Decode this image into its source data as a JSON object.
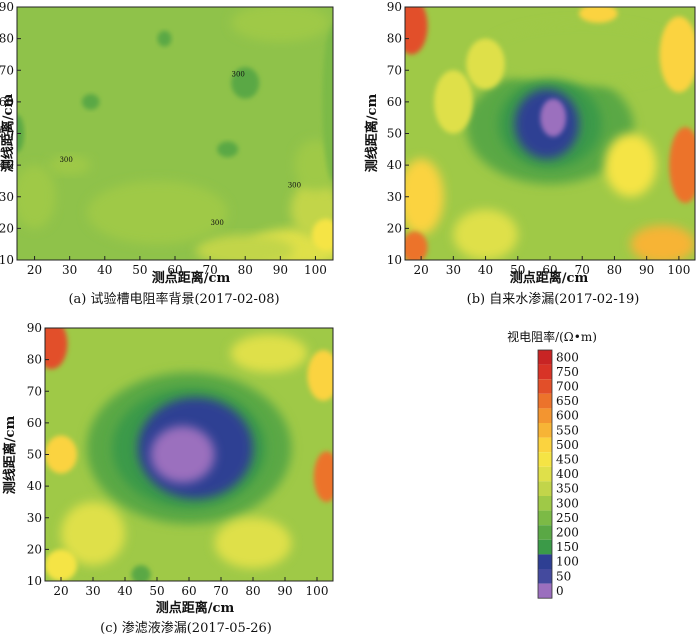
{
  "figure": {
    "colorbar": {
      "title": "视电阻率/(Ω•m)",
      "levels": [
        0,
        50,
        100,
        150,
        200,
        250,
        300,
        350,
        400,
        450,
        500,
        550,
        600,
        650,
        700,
        750,
        800
      ],
      "colors": [
        "#9b6fbe",
        "#444a9e",
        "#2e3f93",
        "#3b9a48",
        "#5aa845",
        "#7cba46",
        "#9fc947",
        "#c2d54a",
        "#dfe04a",
        "#f5e445",
        "#fbd33f",
        "#f7b436",
        "#f39530",
        "#ec732b",
        "#e24f29",
        "#d83326",
        "#c82424"
      ]
    }
  },
  "chart_data": [
    {
      "type": "heatmap",
      "caption": "(a)  试验槽电阻率背景(2017-02-08)",
      "xlabel": "测点距离/cm",
      "ylabel": "测线距离/cm",
      "xlim": [
        15,
        105
      ],
      "ylim": [
        10,
        90
      ],
      "xticks": [
        20,
        30,
        40,
        50,
        60,
        70,
        80,
        90,
        100
      ],
      "yticks": [
        10,
        20,
        30,
        40,
        50,
        60,
        70,
        80,
        90
      ],
      "contour_labels": [
        "300",
        "300",
        "300",
        "300"
      ],
      "background": "#8fc24a",
      "blobs": [
        {
          "cx": 95,
          "cy": 14,
          "rx": 14,
          "ry": 6,
          "v": 420
        },
        {
          "cx": 80,
          "cy": 13,
          "rx": 14,
          "ry": 5,
          "v": 360
        },
        {
          "cx": 100,
          "cy": 26,
          "rx": 7,
          "ry": 9,
          "v": 380
        },
        {
          "cx": 103,
          "cy": 18,
          "rx": 4,
          "ry": 5,
          "v": 480
        },
        {
          "cx": 100,
          "cy": 40,
          "rx": 6,
          "ry": 8,
          "v": 340
        },
        {
          "cx": 30,
          "cy": 40,
          "rx": 6,
          "ry": 3,
          "v": 320
        },
        {
          "cx": 55,
          "cy": 25,
          "rx": 20,
          "ry": 10,
          "v": 320
        },
        {
          "cx": 20,
          "cy": 30,
          "rx": 6,
          "ry": 10,
          "v": 320
        },
        {
          "cx": 80,
          "cy": 66,
          "rx": 4,
          "ry": 5,
          "v": 220
        },
        {
          "cx": 75,
          "cy": 45,
          "rx": 3,
          "ry": 2.5,
          "v": 230
        },
        {
          "cx": 36,
          "cy": 60,
          "rx": 2.5,
          "ry": 2.5,
          "v": 230
        },
        {
          "cx": 57,
          "cy": 80,
          "rx": 2,
          "ry": 2.5,
          "v": 230
        },
        {
          "cx": 15,
          "cy": 50,
          "rx": 2,
          "ry": 6,
          "v": 240
        },
        {
          "cx": 105,
          "cy": 60,
          "rx": 3,
          "ry": 25,
          "v": 250
        },
        {
          "cx": 90,
          "cy": 85,
          "rx": 14,
          "ry": 6,
          "v": 320
        }
      ]
    },
    {
      "type": "heatmap",
      "caption": "(b)  自来水渗漏(2017-02-19)",
      "xlabel": "测点距离/cm",
      "ylabel": "测线距离/cm",
      "xlim": [
        15,
        105
      ],
      "ylim": [
        10,
        90
      ],
      "xticks": [
        20,
        30,
        40,
        50,
        60,
        70,
        80,
        90,
        100
      ],
      "yticks": [
        10,
        20,
        30,
        40,
        50,
        60,
        70,
        80,
        90
      ],
      "background": "#9fc947",
      "blobs": [
        {
          "cx": 60,
          "cy": 52,
          "rx": 26,
          "ry": 18,
          "v": 240
        },
        {
          "cx": 70,
          "cy": 75,
          "rx": 30,
          "ry": 10,
          "v": 340
        },
        {
          "cx": 60,
          "cy": 53,
          "rx": 16,
          "ry": 14,
          "v": 175
        },
        {
          "cx": 59,
          "cy": 53,
          "rx": 10,
          "ry": 11,
          "v": 120
        },
        {
          "cx": 61,
          "cy": 55,
          "rx": 4,
          "ry": 6,
          "v": 30
        },
        {
          "cx": 17,
          "cy": 84,
          "rx": 5,
          "ry": 9,
          "v": 700
        },
        {
          "cx": 20,
          "cy": 30,
          "rx": 7,
          "ry": 12,
          "v": 500
        },
        {
          "cx": 18,
          "cy": 14,
          "rx": 4,
          "ry": 5,
          "v": 650
        },
        {
          "cx": 102,
          "cy": 40,
          "rx": 5,
          "ry": 12,
          "v": 650
        },
        {
          "cx": 100,
          "cy": 75,
          "rx": 6,
          "ry": 12,
          "v": 500
        },
        {
          "cx": 95,
          "cy": 15,
          "rx": 10,
          "ry": 6,
          "v": 550
        },
        {
          "cx": 75,
          "cy": 88,
          "rx": 6,
          "ry": 3,
          "v": 500
        },
        {
          "cx": 40,
          "cy": 72,
          "rx": 6,
          "ry": 8,
          "v": 440
        },
        {
          "cx": 40,
          "cy": 18,
          "rx": 10,
          "ry": 8,
          "v": 440
        },
        {
          "cx": 85,
          "cy": 40,
          "rx": 8,
          "ry": 10,
          "v": 450
        },
        {
          "cx": 30,
          "cy": 60,
          "rx": 6,
          "ry": 10,
          "v": 420
        }
      ]
    },
    {
      "type": "heatmap",
      "caption": "(c)  渗滤液渗漏(2017-05-26)",
      "xlabel": "测点距离/cm",
      "ylabel": "测线距离/cm",
      "xlim": [
        15,
        105
      ],
      "ylim": [
        10,
        90
      ],
      "xticks": [
        20,
        30,
        40,
        50,
        60,
        70,
        80,
        90,
        100
      ],
      "yticks": [
        10,
        20,
        30,
        40,
        50,
        60,
        70,
        80,
        90
      ],
      "background": "#9fc947",
      "blobs": [
        {
          "cx": 60,
          "cy": 52,
          "rx": 32,
          "ry": 24,
          "v": 240
        },
        {
          "cx": 60,
          "cy": 52,
          "rx": 24,
          "ry": 19,
          "v": 175
        },
        {
          "cx": 62,
          "cy": 52,
          "rx": 18,
          "ry": 16,
          "v": 110
        },
        {
          "cx": 58,
          "cy": 50,
          "rx": 10,
          "ry": 9,
          "v": 30
        },
        {
          "cx": 17,
          "cy": 85,
          "rx": 5,
          "ry": 8,
          "v": 700
        },
        {
          "cx": 103,
          "cy": 43,
          "rx": 4,
          "ry": 8,
          "v": 650
        },
        {
          "cx": 102,
          "cy": 75,
          "rx": 5,
          "ry": 8,
          "v": 500
        },
        {
          "cx": 20,
          "cy": 50,
          "rx": 5,
          "ry": 6,
          "v": 500
        },
        {
          "cx": 30,
          "cy": 25,
          "rx": 10,
          "ry": 10,
          "v": 420
        },
        {
          "cx": 80,
          "cy": 22,
          "rx": 12,
          "ry": 8,
          "v": 420
        },
        {
          "cx": 85,
          "cy": 82,
          "rx": 12,
          "ry": 6,
          "v": 400
        },
        {
          "cx": 20,
          "cy": 15,
          "rx": 5,
          "ry": 5,
          "v": 480
        },
        {
          "cx": 45,
          "cy": 12,
          "rx": 3,
          "ry": 3,
          "v": 200
        }
      ]
    }
  ]
}
